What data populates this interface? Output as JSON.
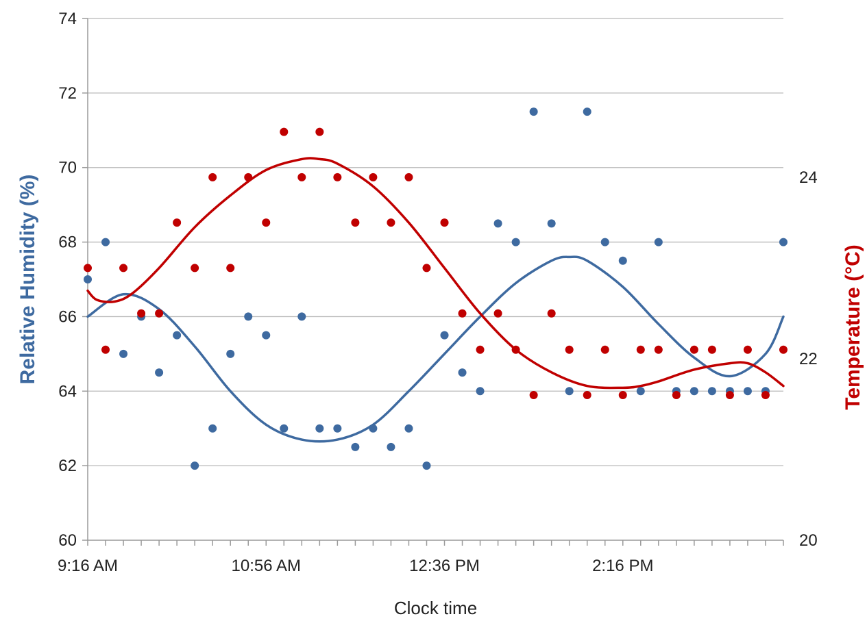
{
  "chart_data": {
    "type": "scatter",
    "xlabel": "Clock time",
    "ylabel": "Relative Humidity (%)",
    "y2label": "Temperature (°C)",
    "x_ticks": [
      {
        "label": "9:16 AM",
        "value": 0
      },
      {
        "label": "10:56 AM",
        "value": 100
      },
      {
        "label": "12:36 PM",
        "value": 200
      },
      {
        "label": "2:16 PM",
        "value": 300
      }
    ],
    "x_range": [
      0,
      390
    ],
    "x_minor_tick_step": 10,
    "ylim": [
      60,
      74
    ],
    "y_ticks": [
      60,
      62,
      64,
      66,
      68,
      70,
      72,
      74
    ],
    "y2lim": [
      20,
      25.75
    ],
    "y2_ticks": [
      20,
      22,
      24
    ],
    "grid": true,
    "colors": {
      "humidity": "#3e6aa0",
      "temperature": "#c00000",
      "grid": "#b8b8b8"
    },
    "series": [
      {
        "key": "humidity",
        "axis": "left",
        "x": [
          0,
          10,
          20,
          30,
          40,
          50,
          60,
          70,
          80,
          90,
          100,
          110,
          120,
          130,
          140,
          150,
          160,
          170,
          180,
          190,
          200,
          210,
          220,
          230,
          240,
          250,
          260,
          270,
          280,
          290,
          300,
          310,
          320,
          330,
          340,
          350,
          360,
          370,
          380,
          390
        ],
        "values": [
          67,
          68,
          65,
          66,
          64.5,
          65.5,
          62,
          63,
          65,
          66,
          65.5,
          63,
          66,
          63,
          63,
          62.5,
          63,
          62.5,
          63,
          62,
          65.5,
          64.5,
          64,
          68.5,
          68,
          71.5,
          68.5,
          64,
          71.5,
          68,
          67.5,
          64,
          68,
          64,
          64,
          64,
          64,
          64,
          64,
          68
        ],
        "trend_x": [
          0,
          20,
          40,
          60,
          80,
          100,
          120,
          140,
          160,
          180,
          200,
          220,
          240,
          260,
          270,
          280,
          300,
          320,
          340,
          360,
          380,
          390
        ],
        "trend_y": [
          66,
          66.6,
          66.2,
          65.2,
          64,
          63.1,
          62.7,
          62.7,
          63.1,
          64,
          65,
          66,
          66.9,
          67.5,
          67.6,
          67.5,
          66.8,
          65.8,
          64.9,
          64.4,
          65,
          66
        ]
      },
      {
        "key": "temperature",
        "axis": "right",
        "x": [
          0,
          10,
          20,
          30,
          40,
          50,
          60,
          70,
          80,
          90,
          100,
          110,
          120,
          130,
          140,
          150,
          160,
          170,
          180,
          190,
          200,
          210,
          220,
          230,
          240,
          250,
          260,
          270,
          280,
          290,
          300,
          310,
          320,
          330,
          340,
          350,
          360,
          370,
          380,
          390
        ],
        "values": [
          23,
          22.1,
          23,
          22.5,
          22.5,
          23.5,
          23,
          24,
          23,
          24,
          23.5,
          24.5,
          24,
          24.5,
          24,
          23.5,
          24,
          23.5,
          24,
          23,
          23.5,
          22.5,
          22.1,
          22.5,
          22.1,
          21.6,
          22.5,
          22.1,
          21.6,
          22.1,
          21.6,
          22.1,
          22.1,
          21.6,
          22.1,
          22.1,
          21.6,
          22.1,
          21.6,
          22.1
        ],
        "trend_x": [
          0,
          5,
          15,
          25,
          40,
          60,
          80,
          100,
          120,
          130,
          140,
          160,
          180,
          200,
          220,
          240,
          260,
          280,
          300,
          310,
          320,
          340,
          360,
          370,
          380,
          390
        ],
        "trend_y": [
          22.75,
          22.65,
          22.63,
          22.72,
          23,
          23.45,
          23.8,
          24.08,
          24.2,
          24.2,
          24.15,
          23.9,
          23.5,
          23,
          22.5,
          22.1,
          21.85,
          21.7,
          21.68,
          21.7,
          21.75,
          21.88,
          21.95,
          21.95,
          21.85,
          21.7
        ]
      }
    ]
  }
}
